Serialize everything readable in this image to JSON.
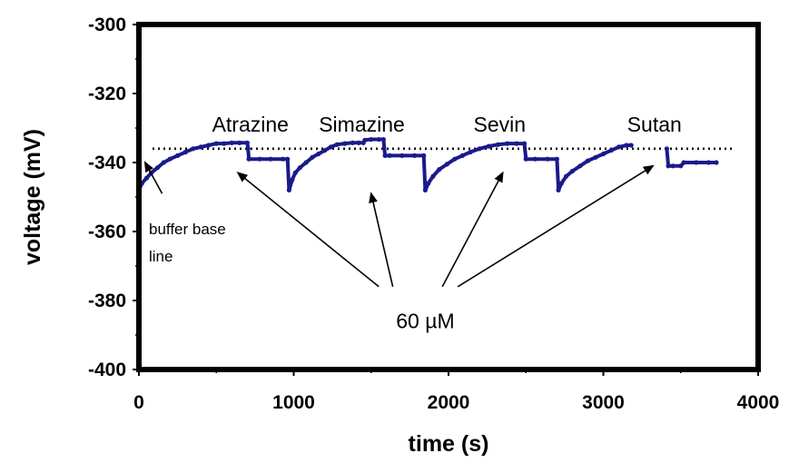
{
  "chart_data": {
    "type": "line",
    "xlabel": "time (s)",
    "ylabel": "voltage (mV)",
    "xlim": [
      0,
      4000
    ],
    "ylim": [
      -400,
      -300
    ],
    "xticks": [
      "0",
      "1000",
      "2000",
      "3000",
      "4000"
    ],
    "yticks": [
      "-300",
      "-320",
      "-340",
      "-360",
      "-380",
      "-400"
    ],
    "grid": false,
    "legend": "none",
    "series_color": "#1a1a8c",
    "baseline_color": "#000000",
    "baseline": {
      "label": "buffer base line",
      "label_lines": [
        "buffer base",
        "line"
      ],
      "y": -336
    },
    "series": [
      {
        "values": [
          [
            0,
            -348
          ],
          [
            20,
            -346
          ],
          [
            50,
            -344.5
          ],
          [
            80,
            -343
          ],
          [
            120,
            -341.5
          ],
          [
            160,
            -340
          ],
          [
            200,
            -339
          ],
          [
            250,
            -338
          ],
          [
            300,
            -337
          ],
          [
            350,
            -336
          ],
          [
            400,
            -335.5
          ],
          [
            450,
            -335
          ],
          [
            500,
            -334.5
          ],
          [
            550,
            -334.5
          ],
          [
            600,
            -334.3
          ],
          [
            650,
            -334.3
          ],
          [
            700,
            -334.3
          ],
          [
            705,
            -336
          ],
          [
            710,
            -339
          ],
          [
            780,
            -339
          ],
          [
            850,
            -339
          ],
          [
            930,
            -339
          ],
          [
            960,
            -339
          ],
          [
            970,
            -348
          ],
          [
            990,
            -345
          ],
          [
            1010,
            -343
          ],
          [
            1040,
            -341.5
          ],
          [
            1080,
            -340
          ],
          [
            1120,
            -338.5
          ],
          [
            1160,
            -337.5
          ],
          [
            1200,
            -336.5
          ],
          [
            1240,
            -335.5
          ],
          [
            1280,
            -334.8
          ],
          [
            1330,
            -334.5
          ],
          [
            1380,
            -334.3
          ],
          [
            1420,
            -334.3
          ],
          [
            1450,
            -334.3
          ],
          [
            1460,
            -333.5
          ],
          [
            1500,
            -333.3
          ],
          [
            1550,
            -333.3
          ],
          [
            1580,
            -333.3
          ],
          [
            1590,
            -338
          ],
          [
            1620,
            -338
          ],
          [
            1700,
            -338
          ],
          [
            1780,
            -338
          ],
          [
            1840,
            -338
          ],
          [
            1850,
            -348
          ],
          [
            1870,
            -346
          ],
          [
            1900,
            -344
          ],
          [
            1940,
            -342
          ],
          [
            1990,
            -340.5
          ],
          [
            2040,
            -339
          ],
          [
            2090,
            -338
          ],
          [
            2140,
            -337
          ],
          [
            2200,
            -336
          ],
          [
            2260,
            -335.3
          ],
          [
            2320,
            -334.8
          ],
          [
            2380,
            -334.5
          ],
          [
            2440,
            -334.5
          ],
          [
            2490,
            -334.5
          ],
          [
            2500,
            -339
          ],
          [
            2560,
            -339
          ],
          [
            2640,
            -339
          ],
          [
            2700,
            -339
          ],
          [
            2710,
            -348
          ],
          [
            2730,
            -346
          ],
          [
            2760,
            -344
          ],
          [
            2800,
            -342.5
          ],
          [
            2850,
            -341
          ],
          [
            2900,
            -339.5
          ],
          [
            2950,
            -338.5
          ],
          [
            3000,
            -337.5
          ],
          [
            3050,
            -336.5
          ],
          [
            3100,
            -335.5
          ],
          [
            3150,
            -335
          ],
          [
            3180,
            -335
          ],
          [
            3410,
            -336
          ],
          [
            3420,
            -341
          ],
          [
            3450,
            -341
          ],
          [
            3500,
            -341
          ],
          [
            3520,
            -340
          ],
          [
            3600,
            -340
          ],
          [
            3680,
            -340
          ],
          [
            3730,
            -340
          ]
        ]
      }
    ],
    "annotations": [
      {
        "text": "Atrazine",
        "x": 720,
        "y": -331
      },
      {
        "text": "Simazine",
        "x": 1440,
        "y": -331
      },
      {
        "text": "Sevin",
        "x": 2330,
        "y": -331
      },
      {
        "text": "Sutan",
        "x": 3330,
        "y": -331
      },
      {
        "text": "60 µM",
        "x": 1850,
        "y": -388
      }
    ],
    "arrows": [
      {
        "from": [
          1550,
          -376
        ],
        "to": [
          640,
          -343
        ]
      },
      {
        "from": [
          1640,
          -376
        ],
        "to": [
          1500,
          -349
        ]
      },
      {
        "from": [
          1960,
          -376
        ],
        "to": [
          2350,
          -343
        ]
      },
      {
        "from": [
          2060,
          -376
        ],
        "to": [
          3320,
          -341
        ]
      }
    ],
    "baseline_arrow": {
      "from": [
        150,
        -349
      ],
      "to": [
        40,
        -340
      ]
    }
  }
}
